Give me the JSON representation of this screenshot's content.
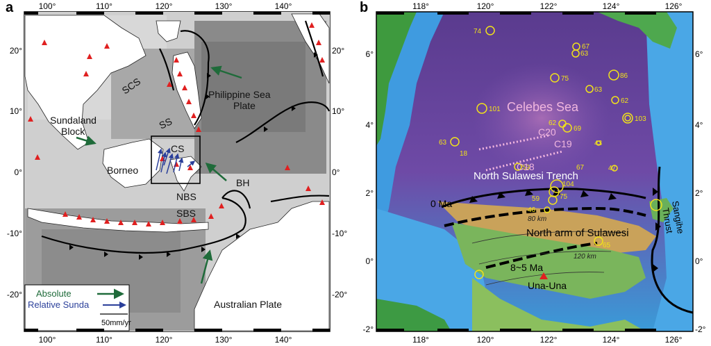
{
  "panel_a": {
    "letter": "a",
    "lon_ticks": [
      "100°",
      "110°",
      "120°",
      "130°",
      "140°"
    ],
    "lat_ticks": [
      "20°",
      "10°",
      "0°",
      "-10°",
      "-20°"
    ],
    "labels": {
      "scs": "SCS",
      "philippine_1": "Philippine Sea",
      "philippine_2": "Plate",
      "sundaland_1": "Sundaland",
      "sundaland_2": "Block",
      "ss": "SS",
      "cs": "CS",
      "borneo": "Borneo",
      "bh": "BH",
      "nbs": "NBS",
      "sbs": "SBS",
      "australian": "Australian Plate"
    },
    "legend": {
      "absolute": "Absolute",
      "relative": "Relative Sunda",
      "scale": "50mm/yr"
    },
    "colors": {
      "absolute": "#1f6b3a",
      "relative": "#2a3f9a",
      "volcano": "#e02020"
    }
  },
  "panel_b": {
    "letter": "b",
    "lon_ticks": [
      "118°",
      "120°",
      "122°",
      "124°",
      "126°"
    ],
    "lat_ticks": [
      "6°",
      "4°",
      "2°",
      "0°",
      "-2°"
    ],
    "labels": {
      "celebes": "Celebes Sea",
      "trench": "North Sulawesi Trench",
      "north_arm": "North arm of Sulawesi",
      "zero_ma": "0 Ma",
      "age": "8~5 Ma",
      "una": "Una-Una",
      "sangihe_1": "Sangihe",
      "sangihe_2": "Thrust",
      "c20": "C20",
      "c19": "C19",
      "c18": "C18",
      "depth_80": "80 km",
      "depth_120": "120 km"
    },
    "quakes": [
      {
        "d": "74"
      },
      {
        "d": "67"
      },
      {
        "d": "63"
      },
      {
        "d": "75"
      },
      {
        "d": "63"
      },
      {
        "d": "86"
      },
      {
        "d": "62"
      },
      {
        "d": "101"
      },
      {
        "d": "62"
      },
      {
        "d": "69"
      },
      {
        "d": "103"
      },
      {
        "d": "63"
      },
      {
        "d": "18"
      },
      {
        "d": "43"
      },
      {
        "d": "59"
      },
      {
        "d": "67"
      },
      {
        "d": "47"
      },
      {
        "d": "104"
      },
      {
        "d": "75"
      },
      {
        "d": "59"
      },
      {
        "d": "46"
      },
      {
        "d": "17"
      },
      {
        "d": "65"
      },
      {
        "d": "58"
      }
    ],
    "colors": {
      "quake": "#f2e21a",
      "anomaly": "#f5b8e0"
    }
  }
}
